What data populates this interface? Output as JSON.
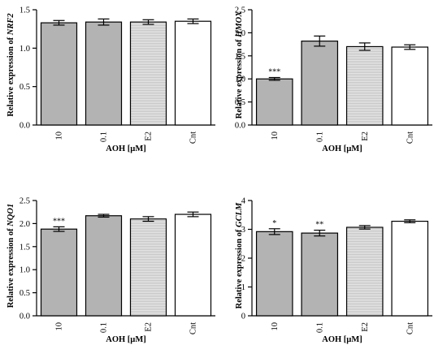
{
  "chart_data": [
    {
      "type": "bar",
      "ylabel_prefix": "Relative expression of ",
      "ylabel_gene": "NRF2",
      "xlabel": "AOH [µM]",
      "categories": [
        "10",
        "0.1",
        "E2",
        "Cnt"
      ],
      "values": [
        1.33,
        1.34,
        1.34,
        1.35
      ],
      "errors": [
        0.03,
        0.04,
        0.03,
        0.03
      ],
      "significance": [
        "",
        "",
        "",
        ""
      ],
      "ylim": [
        0,
        1.5
      ],
      "yticks": [
        "0.0",
        "0.5",
        "1.0",
        "1.5"
      ],
      "fills": [
        "gray",
        "gray",
        "striped",
        "white"
      ]
    },
    {
      "type": "bar",
      "ylabel_prefix": "Relative expression of ",
      "ylabel_gene": "HMOX",
      "xlabel": "AOH [µM]",
      "categories": [
        "10",
        "0.1",
        "E2",
        "Cnt"
      ],
      "values": [
        1.0,
        1.82,
        1.7,
        1.69
      ],
      "errors": [
        0.03,
        0.11,
        0.08,
        0.05
      ],
      "significance": [
        "***",
        "",
        "",
        ""
      ],
      "ylim": [
        0,
        2.5
      ],
      "yticks": [
        "0.0",
        "0.5",
        "1.0",
        "1.5",
        "2.0",
        "2.5"
      ],
      "fills": [
        "gray",
        "gray",
        "striped",
        "white"
      ]
    },
    {
      "type": "bar",
      "ylabel_prefix": "Relative expression of ",
      "ylabel_gene": "NQO1",
      "xlabel": "AOH [µM]",
      "categories": [
        "10",
        "0.1",
        "E2",
        "Cnt"
      ],
      "values": [
        1.88,
        2.17,
        2.1,
        2.2
      ],
      "errors": [
        0.05,
        0.03,
        0.05,
        0.05
      ],
      "significance": [
        "***",
        "",
        "",
        ""
      ],
      "ylim": [
        0,
        2.5
      ],
      "yticks": [
        "0.0",
        "0.5",
        "1.0",
        "1.5",
        "2.0",
        "2.5"
      ],
      "fills": [
        "gray",
        "gray",
        "striped",
        "white"
      ]
    },
    {
      "type": "bar",
      "ylabel_prefix": "Relative expression of ",
      "ylabel_gene": "GCLM",
      "xlabel": "AOH [µM]",
      "categories": [
        "10",
        "0.1",
        "E2",
        "Cnt"
      ],
      "values": [
        2.92,
        2.87,
        3.07,
        3.28
      ],
      "errors": [
        0.1,
        0.1,
        0.06,
        0.05
      ],
      "significance": [
        "*",
        "**",
        "",
        ""
      ],
      "ylim": [
        0,
        4
      ],
      "yticks": [
        "0",
        "1",
        "2",
        "3",
        "4"
      ],
      "fills": [
        "gray",
        "gray",
        "striped",
        "white"
      ]
    }
  ],
  "colors": {
    "gray_bar": "#b3b3b3",
    "stripe_light": "#e9e9e9",
    "stripe_dark": "#c4c4c4",
    "axis": "#000000"
  }
}
